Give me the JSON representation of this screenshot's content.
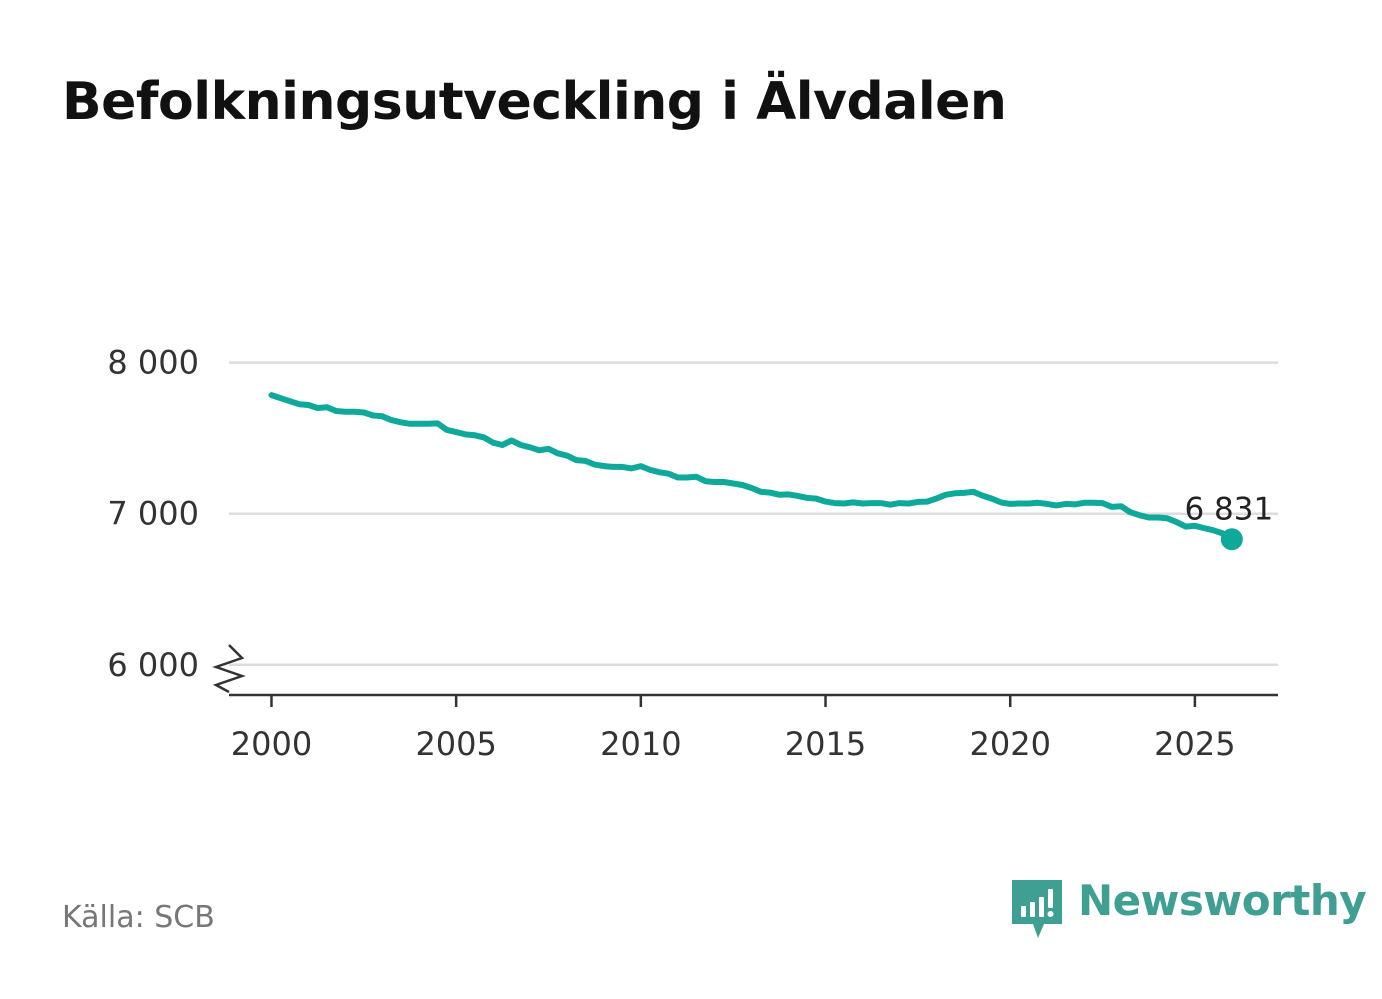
{
  "title": "Befolkningsutveckling i Älvdalen",
  "source": "Källa: SCB",
  "brand": {
    "name": "Newsworthy",
    "logo_icon": "newsworthy-logo-icon"
  },
  "colors": {
    "line": "#0ea99b",
    "grid": "#dddddd",
    "axis": "#333333",
    "brand": "#3f9f93"
  },
  "chart_data": {
    "type": "line",
    "title": "Befolkningsutveckling i Älvdalen",
    "xlabel": "",
    "ylabel": "",
    "x_ticks": [
      2000,
      2005,
      2010,
      2015,
      2020,
      2025
    ],
    "x_tick_labels": [
      "2000",
      "2005",
      "2010",
      "2015",
      "2020",
      "2025"
    ],
    "y_ticks": [
      6000,
      7000,
      8000
    ],
    "y_tick_labels": [
      "6 000",
      "7 000",
      "8 000"
    ],
    "xlim": [
      1998.85,
      2027.25
    ],
    "ylim": [
      5800,
      8150
    ],
    "y_axis_break": true,
    "grid": true,
    "end_label": "6 831",
    "series": [
      {
        "name": "Befolkning",
        "x": [
          2000.0,
          2000.25,
          2000.5,
          2000.75,
          2001.0,
          2001.25,
          2001.5,
          2001.75,
          2002.0,
          2002.25,
          2002.5,
          2002.75,
          2003.0,
          2003.25,
          2003.5,
          2003.75,
          2004.0,
          2004.25,
          2004.5,
          2004.75,
          2005.0,
          2005.25,
          2005.5,
          2005.75,
          2006.0,
          2006.25,
          2006.5,
          2006.75,
          2007.0,
          2007.25,
          2007.5,
          2007.75,
          2008.0,
          2008.25,
          2008.5,
          2008.75,
          2009.0,
          2009.25,
          2009.5,
          2009.75,
          2010.0,
          2010.25,
          2010.5,
          2010.75,
          2011.0,
          2011.25,
          2011.5,
          2011.75,
          2012.0,
          2012.25,
          2012.5,
          2012.75,
          2013.0,
          2013.25,
          2013.5,
          2013.75,
          2014.0,
          2014.25,
          2014.5,
          2014.75,
          2015.0,
          2015.25,
          2015.5,
          2015.75,
          2016.0,
          2016.25,
          2016.5,
          2016.75,
          2017.0,
          2017.25,
          2017.5,
          2017.75,
          2018.0,
          2018.25,
          2018.5,
          2018.75,
          2019.0,
          2019.25,
          2019.5,
          2019.75,
          2020.0,
          2020.25,
          2020.5,
          2020.75,
          2021.0,
          2021.25,
          2021.5,
          2021.75,
          2022.0,
          2022.25,
          2022.5,
          2022.75,
          2023.0,
          2023.25,
          2023.5,
          2023.75,
          2024.0,
          2024.25,
          2024.5,
          2024.75,
          2025.0,
          2025.25,
          2025.5,
          2025.75,
          2026.0
        ],
        "values": [
          7785,
          7765,
          7745,
          7725,
          7720,
          7700,
          7705,
          7680,
          7675,
          7675,
          7670,
          7650,
          7645,
          7620,
          7605,
          7595,
          7595,
          7595,
          7598,
          7555,
          7540,
          7525,
          7520,
          7505,
          7470,
          7455,
          7485,
          7455,
          7440,
          7420,
          7430,
          7400,
          7385,
          7355,
          7350,
          7325,
          7315,
          7310,
          7310,
          7300,
          7315,
          7290,
          7275,
          7265,
          7240,
          7240,
          7245,
          7215,
          7210,
          7210,
          7200,
          7190,
          7170,
          7145,
          7140,
          7125,
          7128,
          7118,
          7105,
          7100,
          7080,
          7070,
          7068,
          7075,
          7068,
          7070,
          7070,
          7060,
          7070,
          7068,
          7078,
          7080,
          7100,
          7125,
          7135,
          7138,
          7145,
          7120,
          7100,
          7075,
          7065,
          7068,
          7068,
          7072,
          7065,
          7055,
          7065,
          7062,
          7072,
          7072,
          7070,
          7045,
          7050,
          7010,
          6990,
          6975,
          6975,
          6970,
          6945,
          6915,
          6920,
          6905,
          6890,
          6870,
          6831
        ]
      }
    ]
  }
}
